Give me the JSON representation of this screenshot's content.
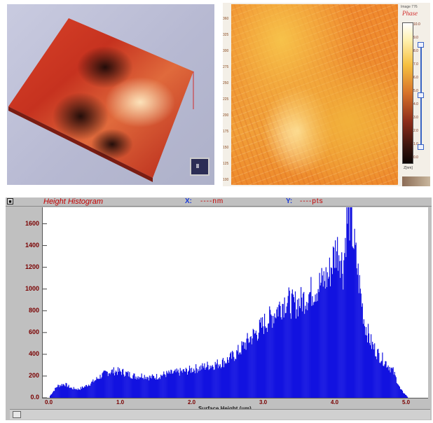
{
  "phase_panel": {
    "title": "Phase",
    "subtitle": "Image 776",
    "left_ticks": [
      "360",
      "325",
      "300",
      "275",
      "250",
      "225",
      "200",
      "175",
      "150",
      "125",
      "100"
    ],
    "colorbar_ticks": [
      "10.0",
      "9.0",
      "8.0",
      "7.0",
      "6.0",
      "5.0",
      "4.0",
      "3.0",
      "2.0",
      "1.0",
      "0.0"
    ],
    "unit": "Z[nm]"
  },
  "histogram": {
    "title": "Height Histogram",
    "x_label": "X:",
    "x_value": "----nm",
    "y_label": "Y:",
    "y_value": "----pts",
    "corner_button": "■",
    "colors": {
      "bar": "#1212e0",
      "title": "#c40000"
    }
  },
  "chart_data": {
    "type": "bar",
    "xlabel": "Surface Height (µm)",
    "ylabel": "",
    "xlim": [
      0.0,
      5.0
    ],
    "ylim": [
      0,
      1700
    ],
    "x_ticks": [
      "0.0",
      "1.0",
      "2.0",
      "3.0",
      "4.0",
      "5.0"
    ],
    "y_ticks": [
      "0.0",
      "200",
      "400",
      "600",
      "800",
      "1000",
      "1200",
      "1400",
      "1600"
    ],
    "x": [
      0.0,
      0.1,
      0.2,
      0.3,
      0.4,
      0.5,
      0.6,
      0.7,
      0.8,
      0.9,
      1.0,
      1.1,
      1.2,
      1.3,
      1.4,
      1.5,
      1.6,
      1.7,
      1.8,
      1.9,
      2.0,
      2.1,
      2.2,
      2.3,
      2.4,
      2.5,
      2.6,
      2.7,
      2.8,
      2.9,
      3.0,
      3.1,
      3.2,
      3.3,
      3.4,
      3.5,
      3.6,
      3.7,
      3.8,
      3.9,
      4.0,
      4.05,
      4.1,
      4.15,
      4.2,
      4.25,
      4.3,
      4.4,
      4.5,
      4.6,
      4.7,
      4.8,
      4.9,
      5.0
    ],
    "values": [
      20,
      110,
      130,
      90,
      80,
      110,
      150,
      200,
      240,
      250,
      245,
      220,
      200,
      210,
      190,
      200,
      220,
      230,
      240,
      250,
      270,
      280,
      300,
      310,
      330,
      360,
      410,
      480,
      560,
      620,
      700,
      760,
      850,
      920,
      870,
      900,
      960,
      1020,
      1080,
      1150,
      1400,
      1380,
      1200,
      1660,
      1720,
      1450,
      1200,
      700,
      500,
      400,
      330,
      250,
      80,
      10
    ]
  }
}
